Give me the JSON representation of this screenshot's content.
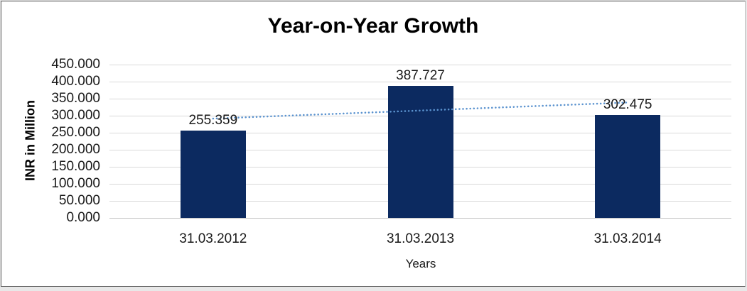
{
  "chart_data": {
    "type": "bar",
    "title": "Year-on-Year Growth",
    "xlabel": "Years",
    "ylabel": "INR in Million",
    "categories": [
      "31.03.2012",
      "31.03.2013",
      "31.03.2014"
    ],
    "values": [
      255.359,
      387.727,
      302.475
    ],
    "value_labels": [
      "255.359",
      "387.727",
      "302.475"
    ],
    "ylim": [
      0,
      450
    ],
    "yticks": [
      {
        "value": 0,
        "label": "0.000"
      },
      {
        "value": 50,
        "label": "50.000"
      },
      {
        "value": 100,
        "label": "100.000"
      },
      {
        "value": 150,
        "label": "150.000"
      },
      {
        "value": 200,
        "label": "200.000"
      },
      {
        "value": 250,
        "label": "250.000"
      },
      {
        "value": 300,
        "label": "300.000"
      },
      {
        "value": 350,
        "label": "350.000"
      },
      {
        "value": 400,
        "label": "400.000"
      },
      {
        "value": 450,
        "label": "450.000"
      }
    ],
    "grid": true,
    "legend": false,
    "trendline": {
      "type": "linear",
      "style": "dotted",
      "endpoints": [
        291.6,
        338.7
      ]
    },
    "colors": {
      "bar": "#0c2a60",
      "trendline": "#5b93cf",
      "gridline": "#d9d9d9",
      "axis_line": "#c6c6c6",
      "tick_text": "#1a1a1a",
      "title_text": "#000000",
      "frame_border": "#595959",
      "page_background": "#e8e8e8"
    }
  }
}
